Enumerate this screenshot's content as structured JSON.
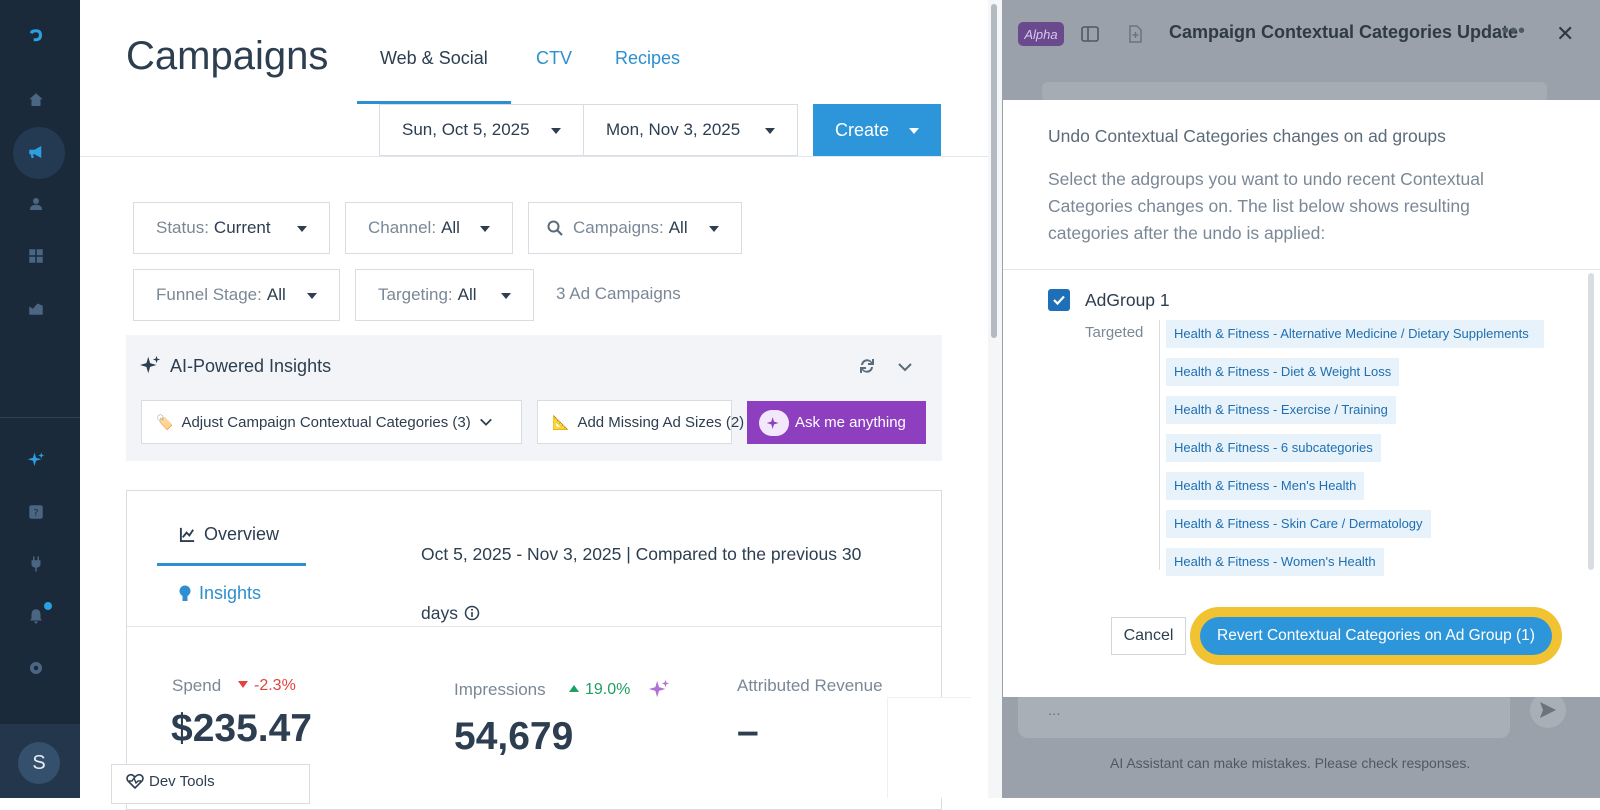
{
  "sidebar": {
    "icons": [
      "logo-icon",
      "home-icon",
      "megaphone-icon",
      "users-icon",
      "grid-icon",
      "chart-icon",
      "sparkle-icon",
      "help-icon",
      "plug-icon",
      "bell-icon",
      "gear-icon"
    ],
    "avatar_initial": "S"
  },
  "header": {
    "title": "Campaigns",
    "tabs": [
      {
        "label": "Web & Social"
      },
      {
        "label": "CTV"
      },
      {
        "label": "Recipes"
      }
    ],
    "start_date": "Sun, Oct 5, 2025",
    "end_date": "Mon, Nov 3, 2025",
    "create_label": "Create"
  },
  "filters": {
    "status": {
      "label": "Status:",
      "value": "Current"
    },
    "channel": {
      "label": "Channel:",
      "value": "All"
    },
    "campaigns": {
      "label": "Campaigns:",
      "value": "All"
    },
    "funnel": {
      "label": "Funnel Stage:",
      "value": "All"
    },
    "targeting": {
      "label": "Targeting:",
      "value": "All"
    },
    "count_text": "3 Ad Campaigns"
  },
  "insights": {
    "title": "AI-Powered Insights",
    "chips": [
      {
        "label": "Adjust Campaign Contextual Categories (3)"
      },
      {
        "label": "Add Missing Ad Sizes (2)"
      }
    ],
    "ask_label": "Ask me anything"
  },
  "overview": {
    "tab_overview": "Overview",
    "tab_insights": "Insights",
    "range_text": "Oct 5, 2025 - Nov 3, 2025 | Compared to the previous 30 days",
    "metrics": [
      {
        "label": "Spend",
        "delta": "-2.3%",
        "value": "$235.47"
      },
      {
        "label": "Impressions",
        "delta": "19.0%",
        "value": "54,679"
      },
      {
        "label": "Attributed Revenue",
        "value": "–"
      }
    ]
  },
  "devtools_label": "Dev Tools",
  "assistant": {
    "badge": "Alpha",
    "title": "Campaign Contextual Categories Update",
    "input_placeholder": "...",
    "disclaimer": "AI Assistant can make mistakes. Please check responses."
  },
  "modal": {
    "title": "Undo Contextual Categories changes on ad groups",
    "description": "Select the adgroups you want to undo recent Contextual Categories changes on. The list below shows resulting categories after the undo is applied:",
    "group": {
      "name": "AdGroup 1",
      "checked": true,
      "targeted_label": "Targeted",
      "categories": [
        "Health & Fitness - Alternative Medicine / Dietary Supplements",
        "Health & Fitness - Diet & Weight Loss",
        "Health & Fitness - Exercise / Training",
        "Health & Fitness - 6 subcategories",
        "Health & Fitness - Men's Health",
        "Health & Fitness - Skin Care / Dermatology",
        "Health & Fitness - Women's Health"
      ]
    },
    "cancel_label": "Cancel",
    "revert_label": "Revert Contextual Categories on Ad Group (1)"
  },
  "colors": {
    "nav_bg": "#1b2a3a",
    "accent_blue": "#2d96db",
    "ask_purple": "#8e3fbf",
    "highlight_ring": "#f1c232",
    "negative": "#e0443e",
    "positive": "#1e9e63"
  }
}
